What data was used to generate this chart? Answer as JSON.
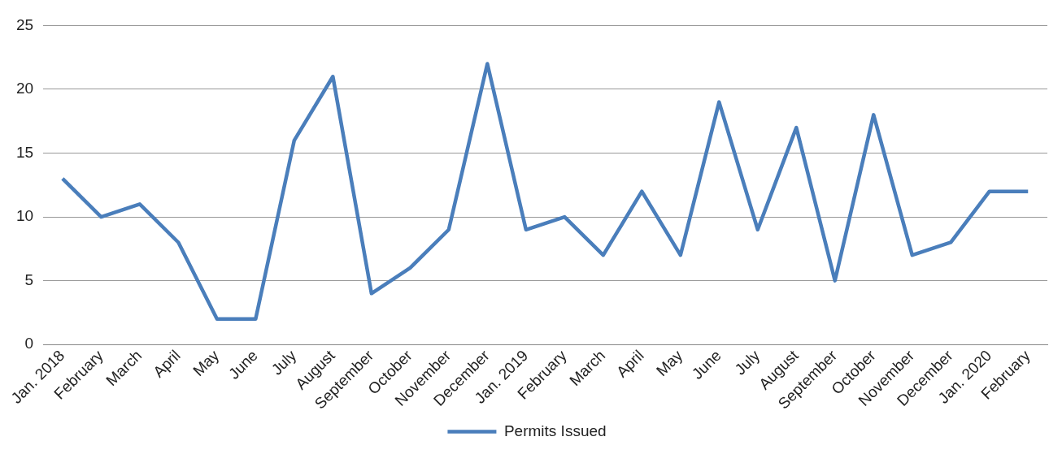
{
  "chart_data": {
    "type": "line",
    "categories": [
      "Jan. 2018",
      "February",
      "March",
      "April",
      "May",
      "June",
      "July",
      "August",
      "September",
      "October",
      "November",
      "December",
      "Jan. 2019",
      "February",
      "March",
      "April",
      "May",
      "June",
      "July",
      "August",
      "September",
      "October",
      "November",
      "December",
      "Jan. 2020",
      "February"
    ],
    "series": [
      {
        "name": "Permits Issued",
        "color": "#4a7ebb",
        "values": [
          13,
          10,
          11,
          8,
          2,
          2,
          16,
          21,
          4,
          6,
          9,
          22,
          9,
          10,
          7,
          12,
          7,
          19,
          9,
          17,
          5,
          18,
          7,
          8,
          12,
          12
        ]
      }
    ],
    "ylim": [
      0,
      25
    ],
    "yticks": [
      0,
      5,
      10,
      15,
      20,
      25
    ],
    "grid": "y",
    "legend": "bottom",
    "marker": "none",
    "line_style": "solid"
  }
}
